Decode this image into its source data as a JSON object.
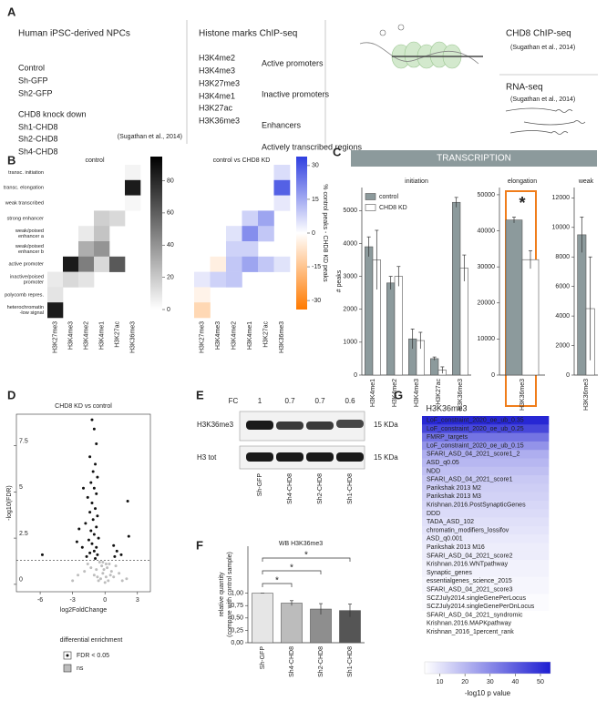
{
  "panel_labels": [
    "A",
    "B",
    "C",
    "D",
    "E",
    "F",
    "G"
  ],
  "panel_a": {
    "cells": {
      "title": "Human iPSC-derived NPCs",
      "control_group": [
        "Control",
        "Sh-GFP",
        "Sh2-GFP"
      ],
      "kd_title": "CHD8 knock down",
      "kd_group": [
        "Sh1-CHD8",
        "Sh2-CHD8",
        "Sh4-CHD8"
      ],
      "reference": "(Sugathan et al., 2014)"
    },
    "histone": {
      "title": "Histone marks ChIP-seq",
      "marks": [
        "H3K4me2",
        "H3K4me3",
        "H3K27me3",
        "H3K4me1",
        "H3K27ac",
        "H3K36me3"
      ],
      "regions": [
        "Active promoters",
        "Inactive promoters",
        "Enhancers",
        "Actively transcribed regions"
      ]
    },
    "chd8": {
      "title": "CHD8 ChIP-seq",
      "reference": "(Sugathan et al., 2014)"
    },
    "rnaseq": {
      "title": "RNA-seq",
      "reference": "(Sugathan et al., 2014)"
    }
  },
  "panel_c": {
    "banner": "TRANSCRIPTION"
  },
  "panel_e": {
    "fc_label": "FC",
    "fc": [
      "1",
      "0.7",
      "0.7",
      "0.6"
    ],
    "bands": [
      "H3K36me3",
      "H3 tot"
    ],
    "size_labels": [
      "15 KDa",
      "15 KDa"
    ],
    "lanes": [
      "Sh-GFP",
      "Sh4-CHD8",
      "Sh2-CHD8",
      "Sh1-CHD8"
    ]
  },
  "chart_data": [
    {
      "type": "heatmap",
      "title": "control",
      "rows": [
        "transc. initiation",
        "transc. elongation",
        "weak transcribed",
        "strong enhancer",
        [
          "weak/poised",
          "enhancer a"
        ],
        [
          "weak/poised",
          "enhancer b"
        ],
        "active promoter",
        [
          "inactive/poised",
          "promoter"
        ],
        "polycomb repres.",
        [
          "heterochromatin",
          "-low signal"
        ]
      ],
      "columns": [
        "H3K27me3",
        "H3K4me3",
        "H3K4me2",
        "H3K4me1",
        "H3K27ac",
        "H3K36me3"
      ],
      "values": [
        [
          null,
          null,
          null,
          null,
          null,
          4
        ],
        [
          null,
          null,
          null,
          null,
          null,
          85
        ],
        [
          null,
          null,
          null,
          null,
          null,
          3
        ],
        [
          null,
          null,
          null,
          18,
          14,
          null
        ],
        [
          null,
          null,
          8,
          22,
          null,
          null
        ],
        [
          null,
          null,
          30,
          40,
          null,
          null
        ],
        [
          null,
          85,
          48,
          14,
          62,
          null
        ],
        [
          8,
          14,
          10,
          null,
          null,
          null
        ],
        [
          10,
          null,
          null,
          null,
          null,
          null
        ],
        [
          85,
          null,
          null,
          null,
          null,
          null
        ]
      ],
      "zlim": [
        0,
        95
      ],
      "zticks": [
        0,
        20,
        40,
        60,
        80
      ],
      "colors": [
        "#ffffff",
        "#000000"
      ]
    },
    {
      "type": "heatmap",
      "title": "control vs CHD8 KD",
      "colorbar_label": "% control peaks - CHD8 KD peaks",
      "columns": [
        "H3K27me3",
        "H3K4me3",
        "H3K4me2",
        "H3K4me1",
        "H3K27ac",
        "H3K36me3"
      ],
      "values": [
        [
          null,
          null,
          null,
          null,
          null,
          6
        ],
        [
          null,
          null,
          null,
          null,
          null,
          28
        ],
        [
          null,
          null,
          null,
          null,
          null,
          4
        ],
        [
          null,
          null,
          null,
          8,
          16,
          null
        ],
        [
          null,
          null,
          5,
          20,
          10,
          null
        ],
        [
          null,
          null,
          8,
          8,
          null,
          null
        ],
        [
          null,
          -4,
          10,
          16,
          10,
          5
        ],
        [
          4,
          8,
          10,
          null,
          null,
          null
        ],
        [
          -3,
          null,
          null,
          null,
          null,
          null
        ],
        [
          -10,
          null,
          null,
          null,
          null,
          null
        ]
      ],
      "zlim": [
        -34,
        34
      ],
      "zticks": [
        -30,
        -15,
        0,
        15,
        30
      ],
      "colors": [
        "#ff7a00",
        "#ffffff",
        "#2f3fe0"
      ]
    },
    {
      "type": "bar",
      "title": "initiation",
      "ylabel": "# peaks",
      "categories": [
        "H3K4me1",
        "H3K4me2",
        "H3K4me3",
        "H3K27ac",
        "H3K36me3"
      ],
      "series": [
        {
          "name": "control",
          "color": "#8c9a9c",
          "values": [
            3900,
            2800,
            1100,
            500,
            5250
          ],
          "errors": [
            300,
            200,
            300,
            50,
            150
          ]
        },
        {
          "name": "CHD8 KD",
          "color": "#ffffff",
          "values": [
            3500,
            3000,
            1050,
            150,
            3250
          ],
          "errors": [
            900,
            300,
            250,
            100,
            400
          ]
        }
      ],
      "ylim": [
        0,
        5700
      ],
      "yticks": [
        0,
        1000,
        2000,
        3000,
        4000,
        5000
      ]
    },
    {
      "type": "bar",
      "title": "elongation",
      "annotation": "*",
      "categories": [
        "H3K36me3"
      ],
      "series": [
        {
          "color": "#8c9a9c",
          "values": [
            43000
          ],
          "errors": [
            800
          ]
        },
        {
          "color": "#ffffff",
          "values": [
            32000
          ],
          "errors": [
            2500
          ]
        }
      ],
      "ylim": [
        0,
        52000
      ],
      "yticks": [
        0,
        10000,
        20000,
        30000,
        40000,
        50000
      ]
    },
    {
      "type": "bar",
      "title": "weak",
      "categories": [
        "H3K36me3"
      ],
      "series": [
        {
          "color": "#8c9a9c",
          "values": [
            9500
          ],
          "errors": [
            1200
          ]
        },
        {
          "color": "#ffffff",
          "values": [
            4500
          ],
          "errors": [
            3500
          ]
        }
      ],
      "ylim": [
        0,
        12700
      ],
      "yticks": [
        0,
        2000,
        4000,
        6000,
        8000,
        10000,
        12000
      ]
    },
    {
      "type": "scatter",
      "title": "CHD8 KD vs control",
      "xlabel": "log2FoldChange",
      "ylabel": "-log10(FDR)",
      "legend_title": "differential enrichment",
      "threshold": 1.3,
      "series": [
        {
          "name": "FDR < 0.05",
          "color": "#111111",
          "x": [
            -1.2,
            -1.0,
            -0.8,
            -1.4,
            -0.9,
            -1.1,
            -0.7,
            -1.3,
            -1.0,
            -0.8,
            -1.6,
            -1.2,
            -0.9,
            -1.4,
            -0.7,
            -1.1,
            -1.8,
            -0.8,
            -1.3,
            -1.0,
            -0.6,
            -1.5,
            -1.2,
            -0.8,
            -2.1,
            -1.0,
            -1.4,
            -0.7,
            -1.7,
            -0.9,
            -2.6,
            -5.8,
            0.8,
            1.1,
            1.5,
            0.9,
            2.1,
            2.2,
            -2.0,
            -2.4
          ],
          "values": [
            8.9,
            8.4,
            7.6,
            6.9,
            6.5,
            6.1,
            5.8,
            5.5,
            5.2,
            4.9,
            4.7,
            4.4,
            4.1,
            3.9,
            3.7,
            3.5,
            3.3,
            3.1,
            2.9,
            2.7,
            2.5,
            2.4,
            2.2,
            2.0,
            2.0,
            1.8,
            1.7,
            1.6,
            1.5,
            1.4,
            2.3,
            1.6,
            2.1,
            1.8,
            1.6,
            1.5,
            4.5,
            2.6,
            5.2,
            3.0
          ]
        },
        {
          "name": "ns",
          "color": "#bdbdbd",
          "x": [
            -0.5,
            -0.3,
            0.2,
            0.4,
            -0.8,
            -0.2,
            0.1,
            0.6,
            -1.0,
            -0.4,
            0.3,
            0.0,
            -0.6,
            0.8,
            -1.3,
            1.0,
            -1.6,
            -0.1,
            0.5,
            -0.7,
            1.3,
            -1.9,
            -2.5,
            2.0,
            -0.2,
            0.1,
            -3.0,
            1.6
          ],
          "values": [
            1.2,
            1.0,
            0.9,
            1.1,
            0.8,
            0.6,
            0.4,
            0.7,
            0.5,
            0.3,
            0.2,
            0.1,
            0.2,
            0.4,
            0.9,
            1.0,
            1.1,
            0.8,
            0.5,
            0.4,
            0.6,
            0.7,
            0.5,
            0.3,
            1.2,
            1.1,
            0.2,
            0.2
          ]
        }
      ],
      "xlim": [
        -8.2,
        4.2
      ],
      "xticks": [
        -6,
        -3,
        0,
        3
      ],
      "ylim": [
        -0.4,
        9.2
      ],
      "yticks": [
        0,
        2.5,
        5,
        7.5
      ]
    },
    {
      "type": "bar",
      "title": "WB H3K36me3",
      "ylabel": [
        "relative quantity",
        "(compare with control sample)"
      ],
      "categories": [
        "Sh-GFP",
        "Sh4-CHD8",
        "Sh2-CHD8",
        "Sh1-CHD8"
      ],
      "colors": [
        "#e6e6e6",
        "#bcbcbc",
        "#8e8e8e",
        "#555555"
      ],
      "series": [
        {
          "values": [
            1.0,
            0.8,
            0.68,
            0.65
          ],
          "errors": [
            0,
            0.05,
            0.11,
            0.13
          ]
        }
      ],
      "annotations": [
        {
          "pair": [
            "Sh-GFP",
            "Sh4-CHD8"
          ],
          "label": "*"
        },
        {
          "pair": [
            "Sh-GFP",
            "Sh2-CHD8"
          ],
          "label": "*"
        },
        {
          "pair": [
            "Sh-GFP",
            "Sh1-CHD8"
          ],
          "label": "*"
        }
      ],
      "ylim": [
        0,
        1.95
      ],
      "yticks": [
        {
          "value": 0,
          "label": "0,00"
        },
        {
          "value": 0.25,
          "label": "0,25"
        },
        {
          "value": 0.5,
          "label": "0,50"
        },
        {
          "value": 0.75,
          "label": "0,75"
        },
        {
          "value": 1,
          "label": "1,00"
        }
      ]
    },
    {
      "type": "heatmap",
      "title": "H3K36me3",
      "colorbar_label": "-log10 p value",
      "rows": [
        "LoF_constraint_2020_oe_ub_0.35",
        "LoF_constraint_2020_oe_ub_0.25",
        "FMRP_targets",
        "LoF_constraint_2020_oe_ub_0.15",
        "SFARI_ASD_04_2021_score1_2",
        "ASD_q0.05",
        "NDD",
        "SFARI_ASD_04_2021_score1",
        "Parikshak 2013 M2",
        "Parikshak 2013 M3",
        "Krishnan.2016.PostSynapticGenes",
        "DDD",
        "TADA_ASD_102",
        "chromatin_modifiers_lossifov",
        "ASD_q0.001",
        "Parikshak 2013 M16",
        "SFARI_ASD_04_2021_score2",
        "Krishnan.2016.WNTpathway",
        "Synaptic_genes",
        "essentialgenes_science_2015",
        "SFARI_ASD_04_2021_score3",
        "SCZJuly2014.singleGenePerLocus",
        "SCZJuly2014.singleGenePerOnLocus",
        "SFARI_ASD_04_2021_syndromic",
        "Krishnan.2016.MAPKpathway",
        "Krishnan_2016_1percent_rank"
      ],
      "values": [
        52,
        45,
        35,
        28,
        22,
        20,
        18,
        16,
        15,
        14,
        13,
        12,
        11,
        10,
        9,
        8,
        8,
        7,
        7,
        6,
        6,
        5,
        5,
        4,
        4,
        3
      ],
      "zlim": [
        4,
        54
      ],
      "zticks": [
        10,
        20,
        30,
        40,
        50
      ],
      "colors": [
        "#ffffff",
        "#1e1ed2"
      ]
    }
  ]
}
